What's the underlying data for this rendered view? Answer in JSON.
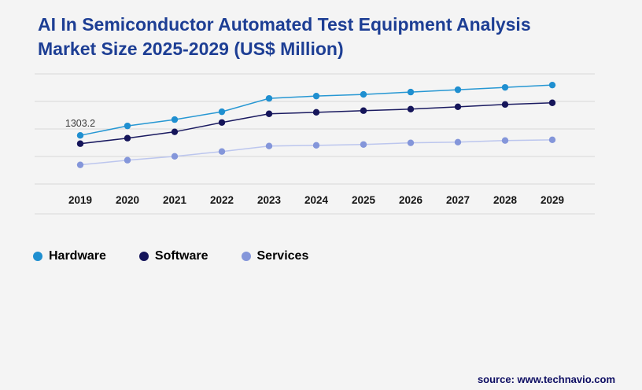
{
  "header": {
    "title_line1": "AI In Semiconductor Automated Test Equipment Analysis",
    "title_line2": "Market Size 2025-2029 (US$ Million)"
  },
  "chart_data": {
    "type": "line",
    "title": "AI In Semiconductor Automated Test Equipment Analysis Market Size 2025-2029 (US$ Million)",
    "categories": [
      "2019",
      "2020",
      "2021",
      "2022",
      "2023",
      "2024",
      "2025",
      "2026",
      "2027",
      "2028",
      "2029"
    ],
    "series": [
      {
        "name": "Hardware",
        "color": "#2697d3",
        "marker": "#1f8fd0",
        "values": [
          1303.2,
          1372,
          1418,
          1475,
          1572,
          1589,
          1601,
          1618,
          1635,
          1652,
          1669
        ]
      },
      {
        "name": "Software",
        "color": "#1a1a60",
        "marker": "#15155a",
        "values": [
          1243,
          1283,
          1329,
          1397,
          1460,
          1471,
          1483,
          1494,
          1511,
          1528,
          1540
        ]
      },
      {
        "name": "Services",
        "color": "#bcc6ee",
        "marker": "#8496da",
        "values": [
          1089,
          1123,
          1151,
          1186,
          1226,
          1231,
          1237,
          1249,
          1254,
          1266,
          1271
        ]
      }
    ],
    "annotation": "1303.2",
    "ylim": [
      950,
      1750
    ],
    "grid": true,
    "grid_color": "#d8d8d8",
    "legend_position": "bottom-left",
    "xlabel": "",
    "ylabel": ""
  },
  "footer": {
    "source": "source: www.technavio.com"
  }
}
